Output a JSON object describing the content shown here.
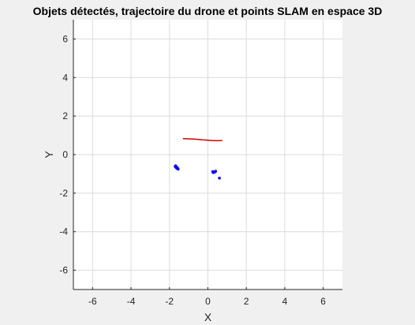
{
  "chart_data": {
    "type": "scatter",
    "title": "Objets détectés, trajectoire du drone et points SLAM en espace 3D",
    "xlabel": "X",
    "ylabel": "Y",
    "xlim": [
      -7,
      7
    ],
    "ylim": [
      -7,
      7
    ],
    "xticks": [
      -6,
      -4,
      -2,
      0,
      2,
      4,
      6
    ],
    "yticks": [
      -6,
      -4,
      -2,
      0,
      2,
      4,
      6
    ],
    "grid": true,
    "series": [
      {
        "kind": "line",
        "color": "#cc0000",
        "x": [
          -1.3,
          -1.0,
          -0.6,
          -0.2,
          0.2,
          0.5,
          0.75
        ],
        "y": [
          0.83,
          0.82,
          0.8,
          0.76,
          0.73,
          0.72,
          0.73
        ]
      },
      {
        "kind": "scatter",
        "color": "#0000ff",
        "x": [
          -1.7,
          -1.65,
          -1.6,
          -1.55,
          -1.62,
          -1.68,
          -1.58,
          0.25,
          0.3,
          0.35,
          0.4,
          0.28,
          0.38,
          0.6
        ],
        "y": [
          -0.62,
          -0.68,
          -0.72,
          -0.75,
          -0.65,
          -0.58,
          -0.7,
          -0.88,
          -0.92,
          -0.9,
          -0.86,
          -0.93,
          -0.89,
          -1.22
        ]
      }
    ]
  }
}
